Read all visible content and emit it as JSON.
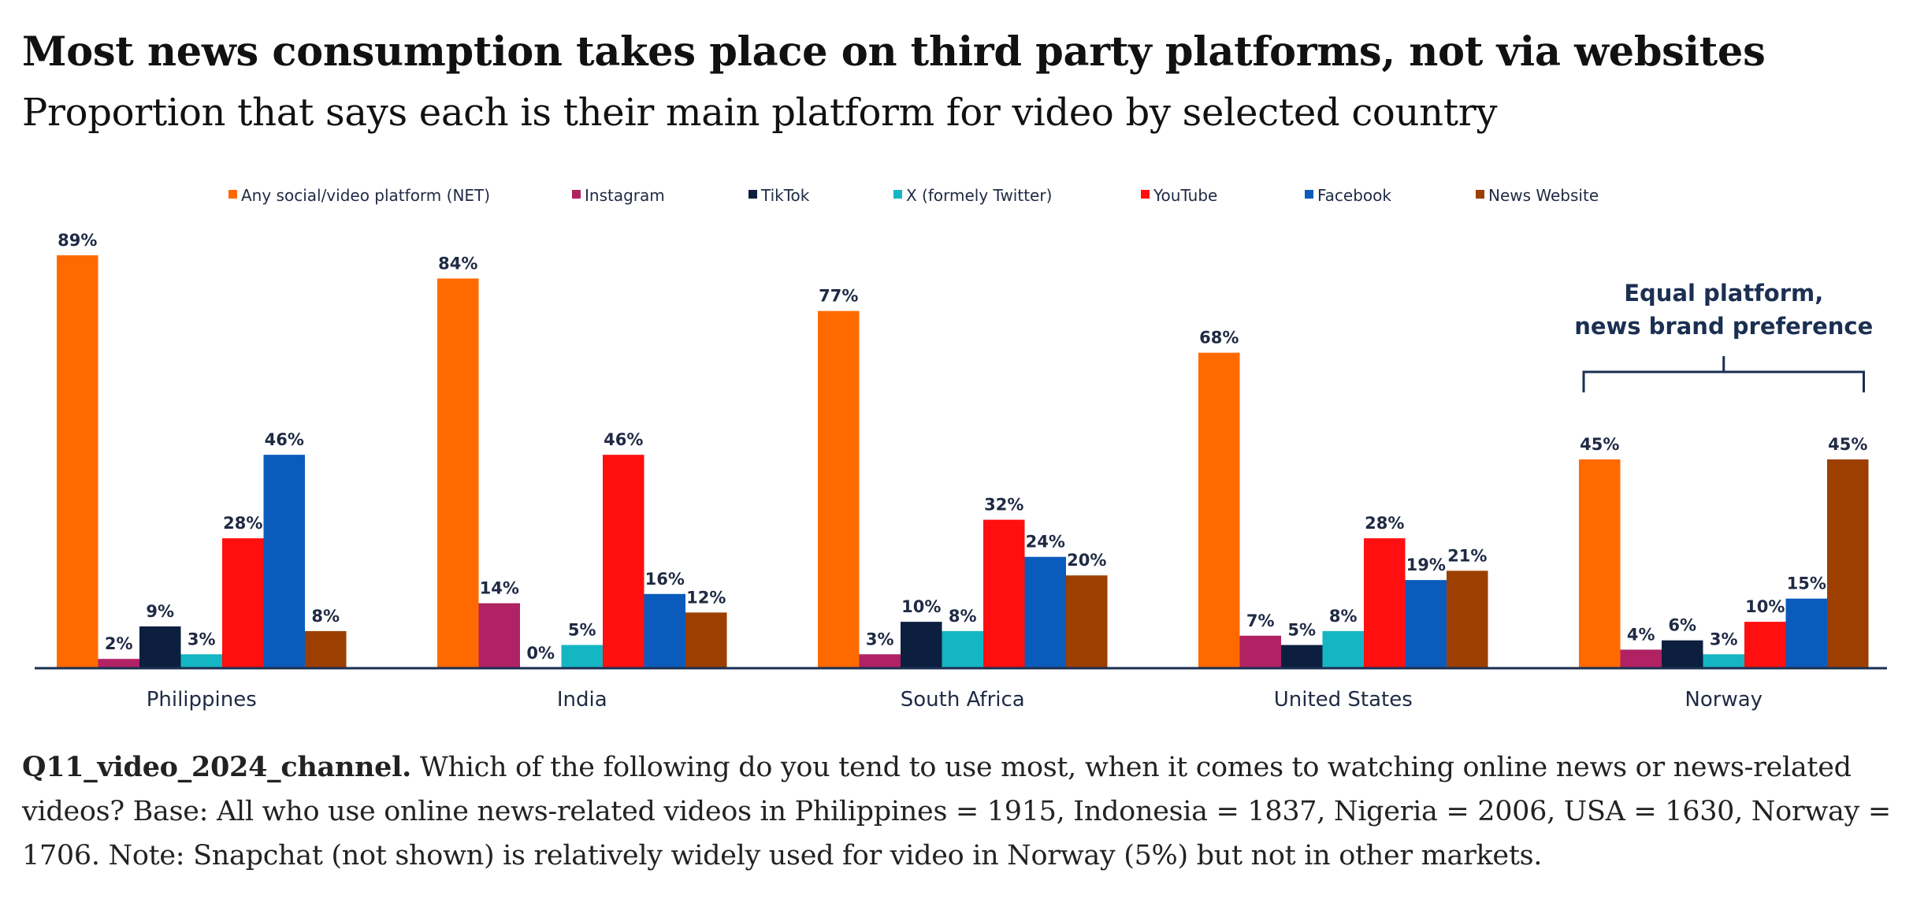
{
  "title": "Most news consumption takes place on third party platforms, not via websites",
  "subtitle": "Proportion that says each is their main platform for video by selected country",
  "chart_data": {
    "type": "bar",
    "categories": [
      "Philippines",
      "India",
      "South Africa",
      "United States",
      "Norway"
    ],
    "series": [
      {
        "name": "Any social/video platform (NET)",
        "color": "#ff6a00",
        "values": [
          89,
          84,
          77,
          68,
          45
        ]
      },
      {
        "name": "Instagram",
        "color": "#b02264",
        "values": [
          2,
          14,
          3,
          7,
          4
        ]
      },
      {
        "name": "TikTok",
        "color": "#0d1f3f",
        "values": [
          9,
          0,
          10,
          5,
          6
        ]
      },
      {
        "name": "X (formely Twitter)",
        "color": "#15b6c3",
        "values": [
          3,
          5,
          8,
          8,
          3
        ]
      },
      {
        "name": "YouTube",
        "color": "#ff0f0f",
        "values": [
          28,
          46,
          32,
          28,
          10
        ]
      },
      {
        "name": "Facebook",
        "color": "#0b5bbd",
        "values": [
          46,
          16,
          24,
          19,
          15
        ]
      },
      {
        "name": "News Website",
        "color": "#9c3f00",
        "values": [
          8,
          12,
          20,
          21,
          45
        ]
      }
    ],
    "value_suffix": "%",
    "ylim": [
      0,
      100
    ],
    "grid": false,
    "legend_position": "top",
    "annotation": {
      "lines": [
        "Equal platform,",
        "news brand preference"
      ],
      "category": "Norway"
    }
  },
  "footnote": {
    "lead": "Q11_video_2024_channel.",
    "text": " Which of the following do you tend to use most, when it comes to watching online news or news-related videos? Base: All who use online news-related videos in Philippines = 1915, Indonesia = 1837, Nigeria = 2006, USA = 1630, Norway = 1706. Note: Snapchat (not shown) is relatively widely used for video in Norway (5%) but not in other markets."
  }
}
